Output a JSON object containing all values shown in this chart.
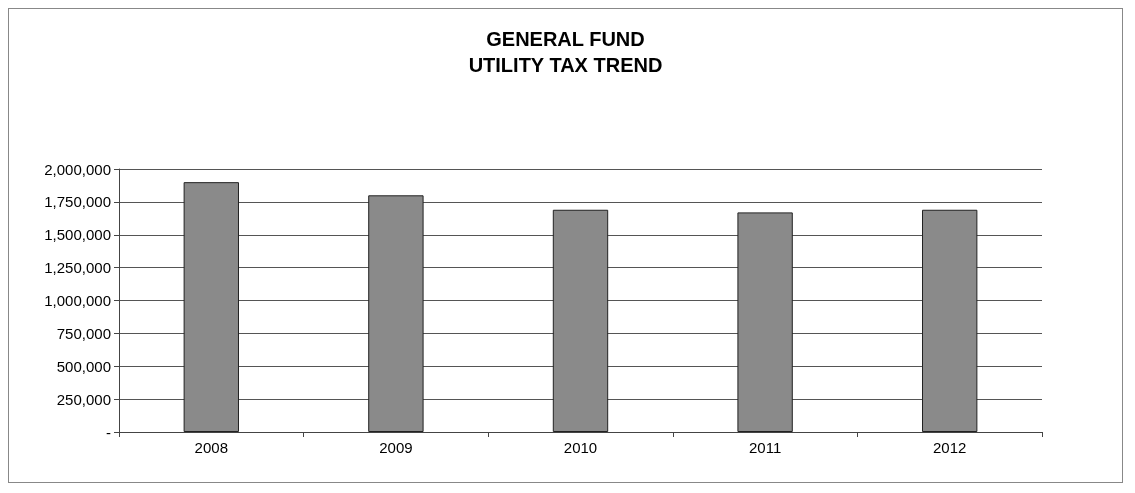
{
  "chart_data": {
    "type": "bar",
    "title": "GENERAL FUND\nUTILITY TAX TREND",
    "categories": [
      "2008",
      "2009",
      "2010",
      "2011",
      "2012"
    ],
    "values": [
      1900000,
      1800000,
      1690000,
      1670000,
      1690000
    ],
    "color": "#8a8a8a",
    "ylim": [
      0,
      2000000
    ],
    "yticks": [
      {
        "value": 0,
        "label": "-"
      },
      {
        "value": 250000,
        "label": "250,000"
      },
      {
        "value": 500000,
        "label": "500,000"
      },
      {
        "value": 750000,
        "label": "750,000"
      },
      {
        "value": 1000000,
        "label": "1,000,000"
      },
      {
        "value": 1250000,
        "label": "1,250,000"
      },
      {
        "value": 1500000,
        "label": "1,500,000"
      },
      {
        "value": 1750000,
        "label": "1,750,000"
      },
      {
        "value": 2000000,
        "label": "2,000,000"
      }
    ],
    "grid": "y"
  }
}
